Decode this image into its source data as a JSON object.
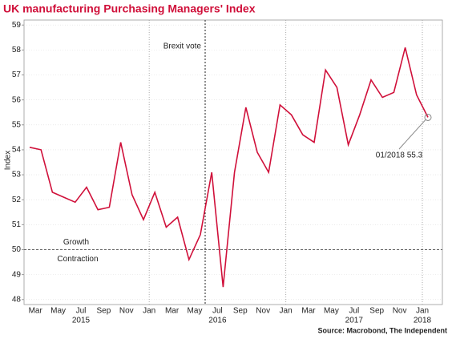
{
  "chart_data": {
    "type": "line",
    "title": "UK manufacturing Purchasing Managers' Index",
    "y_label": "Index",
    "source": "Source: Macrobond, The Independent",
    "categories": [
      null,
      "Mar",
      null,
      "May",
      null,
      "Jul",
      null,
      "Sep",
      null,
      "Nov",
      null,
      "Jan",
      null,
      "Mar",
      null,
      "May",
      null,
      "Jul",
      null,
      "Sep",
      null,
      "Nov",
      null,
      "Jan",
      null,
      "Mar",
      null,
      "May",
      null,
      "Jul",
      null,
      "Sep",
      null,
      "Nov",
      null,
      "Jan"
    ],
    "years": [
      "2015",
      "2016",
      "2017",
      "2018"
    ],
    "series": [
      {
        "name": "UK manufacturing PMI",
        "color": "#d0103a",
        "values": [
          54.1,
          54.0,
          52.3,
          52.1,
          51.9,
          52.5,
          51.6,
          51.7,
          54.3,
          52.2,
          51.2,
          52.3,
          50.9,
          51.3,
          49.6,
          50.6,
          53.1,
          48.5,
          53.1,
          55.7,
          53.9,
          53.1,
          55.8,
          55.4,
          54.6,
          54.3,
          57.2,
          56.5,
          54.2,
          55.4,
          56.8,
          56.1,
          56.3,
          58.1,
          56.2,
          55.3
        ]
      }
    ],
    "ylim": [
      47.8,
      59.2
    ],
    "yticks": [
      48,
      49,
      50,
      51,
      52,
      53,
      54,
      55,
      56,
      57,
      58,
      59
    ],
    "grid": true,
    "annotations": {
      "brexit": "Brexit vote",
      "growth": "Growth",
      "contraction": "Contraction",
      "last_point": "01/2018 55.3",
      "threshold": 50
    }
  }
}
